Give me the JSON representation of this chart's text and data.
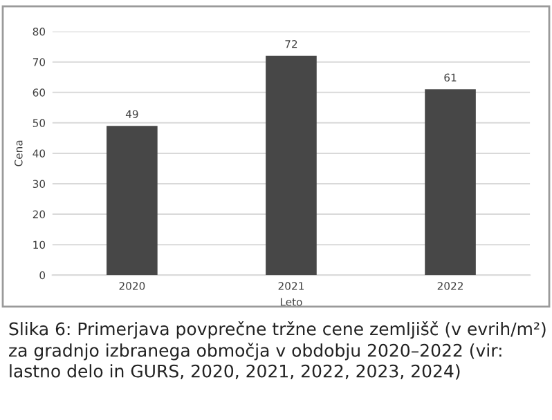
{
  "chart_data": {
    "type": "bar",
    "xlabel": "Leto",
    "ylabel": "Cena",
    "categories": [
      "2020",
      "2021",
      "2022"
    ],
    "values": [
      49,
      72,
      61
    ],
    "color": "#474747",
    "ylim": [
      0,
      80
    ],
    "yticks": [
      0,
      10,
      20,
      30,
      40,
      50,
      60,
      70,
      80
    ],
    "grid": "y",
    "data_labels": true,
    "annotations": [
      "Slika 6: Primerjava povprečne tržne cene zemljišč (v evrih/m²) za gradnjo izbranega območja v obdobju 2020–2022 (vir: lastno delo in GURS, 2020, 2021, 2022, 2023, 2024)"
    ]
  }
}
